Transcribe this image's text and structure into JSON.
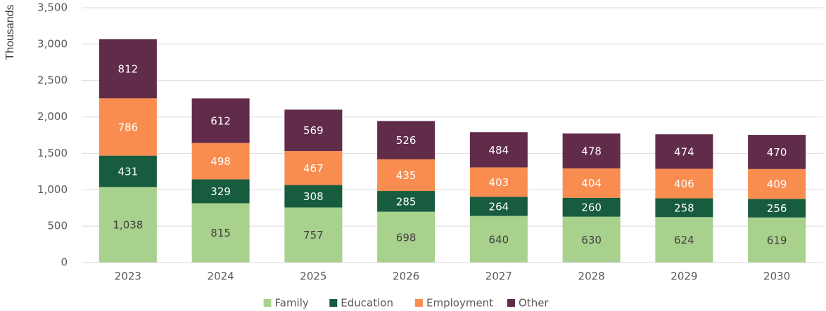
{
  "chart_data": {
    "type": "stacked_bar",
    "y_label": "Thousands",
    "categories": [
      "2023",
      "2024",
      "2025",
      "2026",
      "2027",
      "2028",
      "2029",
      "2030"
    ],
    "series": [
      {
        "name": "Family",
        "color": "#a9d18e",
        "label_color": "#404040",
        "values": [
          1038,
          815,
          757,
          698,
          640,
          630,
          624,
          619
        ],
        "value_labels": [
          "1,038",
          "815",
          "757",
          "698",
          "640",
          "630",
          "624",
          "619"
        ]
      },
      {
        "name": "Education",
        "color": "#175c3e",
        "label_color": "#ffffff",
        "values": [
          431,
          329,
          308,
          285,
          264,
          260,
          258,
          256
        ]
      },
      {
        "name": "Employment",
        "color": "#f98d50",
        "label_color": "#ffffff",
        "values": [
          786,
          498,
          467,
          435,
          403,
          404,
          406,
          409
        ]
      },
      {
        "name": "Other",
        "color": "#612b4a",
        "label_color": "#ffffff",
        "values": [
          812,
          612,
          569,
          526,
          484,
          478,
          474,
          470
        ]
      }
    ],
    "ylim": [
      0,
      3500
    ],
    "yticks": [
      0,
      500,
      {
        "value": 1000,
        "label": "1,000"
      },
      {
        "value": 1500,
        "label": "1,500"
      },
      {
        "value": 2000,
        "label": "2,000"
      },
      {
        "value": 2500,
        "label": "2,500"
      },
      {
        "value": 3000,
        "label": "3,000"
      },
      {
        "value": 3500,
        "label": "3,500"
      }
    ],
    "grid": true,
    "legend": "bottom"
  }
}
